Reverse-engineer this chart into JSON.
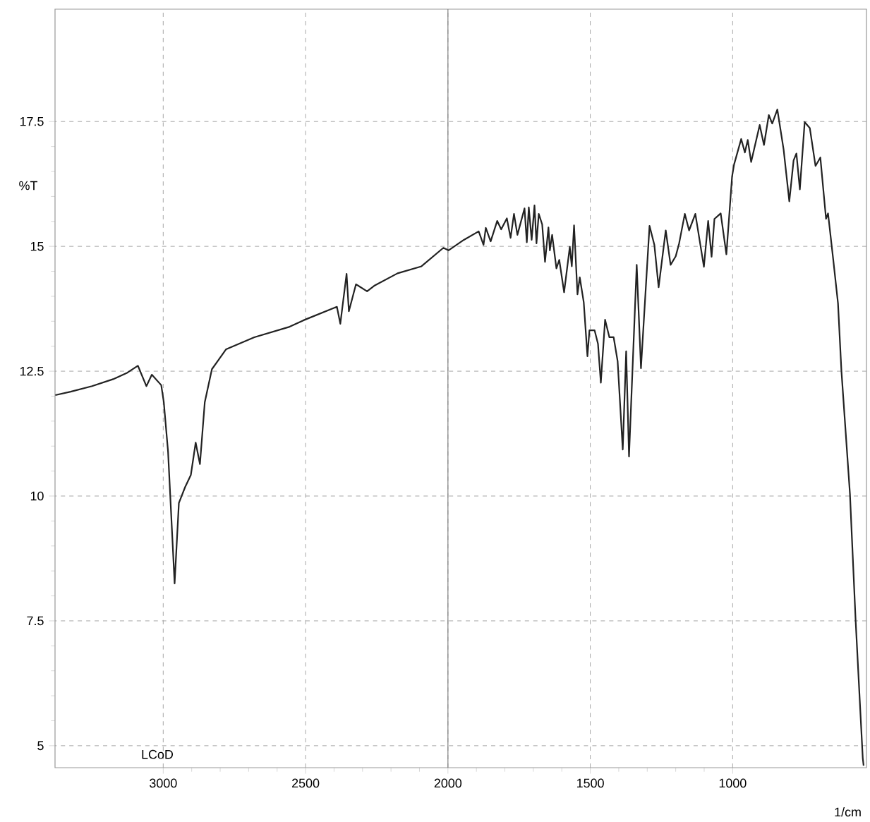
{
  "chart_data": {
    "type": "line",
    "xlabel": "1/cm",
    "ylabel": "%T",
    "annotations": [
      "LCoD"
    ],
    "x": [
      3379,
      3325,
      3250,
      3176,
      3126,
      3089,
      3059,
      3040,
      3007,
      2998,
      2983,
      2960,
      2945,
      2923,
      2903,
      2886,
      2871,
      2854,
      2829,
      2779,
      2680,
      2556,
      2507,
      2390,
      2378,
      2356,
      2348,
      2323,
      2284,
      2259,
      2177,
      2093,
      2016,
      1998,
      1944,
      1892,
      1875,
      1867,
      1850,
      1827,
      1813,
      1793,
      1780,
      1768,
      1756,
      1731,
      1723,
      1716,
      1706,
      1696,
      1689,
      1681,
      1669,
      1659,
      1647,
      1642,
      1634,
      1619,
      1609,
      1592,
      1572,
      1565,
      1557,
      1545,
      1537,
      1523,
      1510,
      1503,
      1485,
      1473,
      1463,
      1448,
      1433,
      1418,
      1404,
      1386,
      1374,
      1364,
      1337,
      1322,
      1292,
      1275,
      1260,
      1235,
      1218,
      1200,
      1188,
      1168,
      1153,
      1131,
      1101,
      1086,
      1074,
      1064,
      1042,
      1022,
      1002,
      995,
      970,
      957,
      947,
      935,
      905,
      890,
      873,
      861,
      843,
      821,
      801,
      786,
      776,
      764,
      747,
      729,
      709,
      692,
      672,
      665,
      647,
      630,
      618,
      588,
      568,
      543,
      540
    ],
    "series": [
      {
        "color": "#222222",
        "values": [
          12.02,
          12.09,
          12.2,
          12.34,
          12.47,
          12.61,
          12.2,
          12.43,
          12.22,
          11.88,
          10.89,
          8.25,
          9.86,
          10.18,
          10.42,
          11.07,
          10.64,
          11.88,
          12.54,
          12.94,
          13.18,
          13.39,
          13.52,
          13.79,
          13.45,
          14.45,
          13.7,
          14.24,
          14.1,
          14.21,
          14.46,
          14.6,
          14.97,
          14.92,
          15.13,
          15.3,
          15.03,
          15.37,
          15.1,
          15.51,
          15.34,
          15.56,
          15.17,
          15.65,
          15.23,
          15.76,
          15.08,
          15.78,
          15.13,
          15.82,
          15.06,
          15.65,
          15.44,
          14.69,
          15.38,
          14.92,
          15.23,
          14.56,
          14.73,
          14.08,
          14.99,
          14.6,
          15.42,
          14.04,
          14.38,
          13.88,
          12.8,
          13.32,
          13.32,
          13.05,
          12.27,
          13.53,
          13.18,
          13.18,
          12.7,
          10.93,
          12.9,
          10.79,
          14.63,
          12.56,
          15.41,
          15.03,
          14.18,
          15.32,
          14.63,
          14.8,
          15.06,
          15.65,
          15.32,
          15.65,
          14.59,
          15.51,
          14.79,
          15.55,
          15.66,
          14.84,
          16.4,
          16.64,
          17.15,
          16.88,
          17.13,
          16.69,
          17.43,
          17.03,
          17.63,
          17.46,
          17.74,
          16.94,
          15.9,
          16.72,
          16.86,
          16.14,
          17.49,
          17.37,
          16.61,
          16.78,
          15.55,
          15.66,
          14.75,
          13.86,
          12.51,
          10.04,
          7.5,
          4.75,
          4.6
        ]
      }
    ],
    "xlim": [
      3380,
      530
    ],
    "ylim": [
      4.56,
      19.75
    ],
    "xticks": [
      3000,
      2500,
      2000,
      1500,
      1000
    ],
    "yticks": [
      5,
      7.5,
      10,
      12.5,
      15,
      17.5
    ],
    "grid": true,
    "ref_lines": [
      {
        "axis": "x",
        "value": 2000,
        "color": "#808080",
        "line_style": "solid"
      }
    ]
  }
}
